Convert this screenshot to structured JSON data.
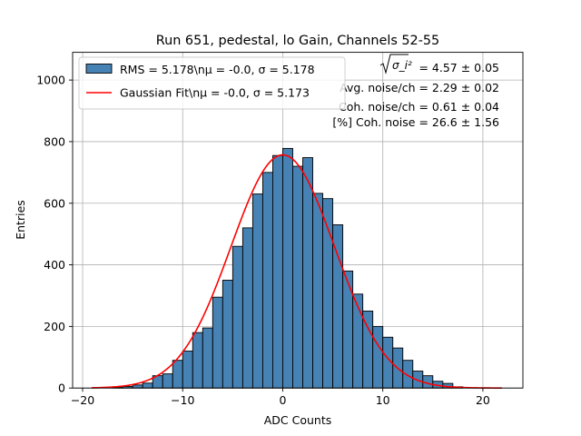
{
  "chart_data": {
    "type": "bar",
    "title": "Run 651, pedestal, lo Gain, Channels 52-55",
    "xlabel": "ADC Counts",
    "ylabel": "Entries",
    "xlim": [
      -21,
      24
    ],
    "ylim": [
      0,
      1090
    ],
    "xticks": [
      -20,
      -10,
      0,
      10,
      20
    ],
    "yticks": [
      0,
      200,
      400,
      600,
      800,
      1000
    ],
    "grid": true,
    "legend_position": "top-left",
    "histogram": {
      "name": "RMS = 5.178\\nμ = -0.0, σ = 5.178",
      "color": "#4682b4",
      "edge_color": "#000000",
      "bin_width": 1,
      "bin_left": [
        -17,
        -16,
        -15,
        -14,
        -13,
        -12,
        -11,
        -10,
        -9,
        -8,
        -7,
        -6,
        -5,
        -4,
        -3,
        -2,
        -1,
        0,
        1,
        2,
        3,
        4,
        5,
        6,
        7,
        8,
        9,
        10,
        11,
        12,
        13,
        14,
        15,
        16,
        17
      ],
      "counts": [
        2,
        5,
        10,
        16,
        40,
        46,
        90,
        120,
        180,
        195,
        295,
        350,
        460,
        520,
        630,
        700,
        755,
        778,
        720,
        748,
        632,
        615,
        530,
        380,
        305,
        250,
        200,
        165,
        130,
        90,
        55,
        40,
        22,
        15,
        4
      ]
    },
    "fit": {
      "name": "Gaussian Fit\\nμ = -0.0, σ = 5.173",
      "color": "#ff0000",
      "mu": 0.0,
      "sigma": 5.173,
      "amplitude": 757,
      "x_range": [
        -19.1,
        21.9
      ]
    },
    "annotations": [
      {
        "label": "σ_i²",
        "text": " = 4.57 ± 0.05"
      },
      {
        "text": "Avg. noise/ch = 2.29 ± 0.02"
      },
      {
        "text": "Coh. noise/ch = 0.61 ± 0.04"
      },
      {
        "text": "[%] Coh. noise = 26.6 ± 1.56"
      }
    ]
  }
}
